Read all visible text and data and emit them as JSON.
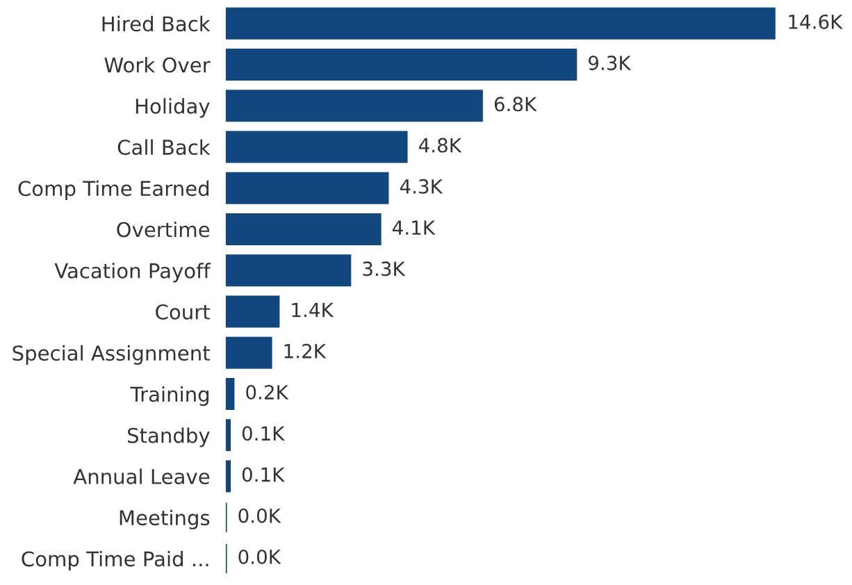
{
  "chart_data": {
    "type": "bar",
    "orientation": "horizontal",
    "categories": [
      "Hired Back",
      "Work Over",
      "Holiday",
      "Call Back",
      "Comp Time Earned",
      "Overtime",
      "Vacation Payoff",
      "Court",
      "Special Assignment",
      "Training",
      "Standby",
      "Annual Leave",
      "Meetings",
      "Comp Time Paid ..."
    ],
    "values": [
      14.6,
      9.3,
      6.8,
      4.8,
      4.3,
      4.1,
      3.3,
      1.4,
      1.2,
      0.2,
      0.1,
      0.1,
      0.0,
      0.0
    ],
    "value_labels": [
      "14.6K",
      "9.3K",
      "6.8K",
      "4.8K",
      "4.3K",
      "4.1K",
      "3.3K",
      "1.4K",
      "1.2K",
      "0.2K",
      "0.1K",
      "0.1K",
      "0.0K",
      "0.0K"
    ],
    "color": "#10477e",
    "grid": false,
    "legend": false
  }
}
